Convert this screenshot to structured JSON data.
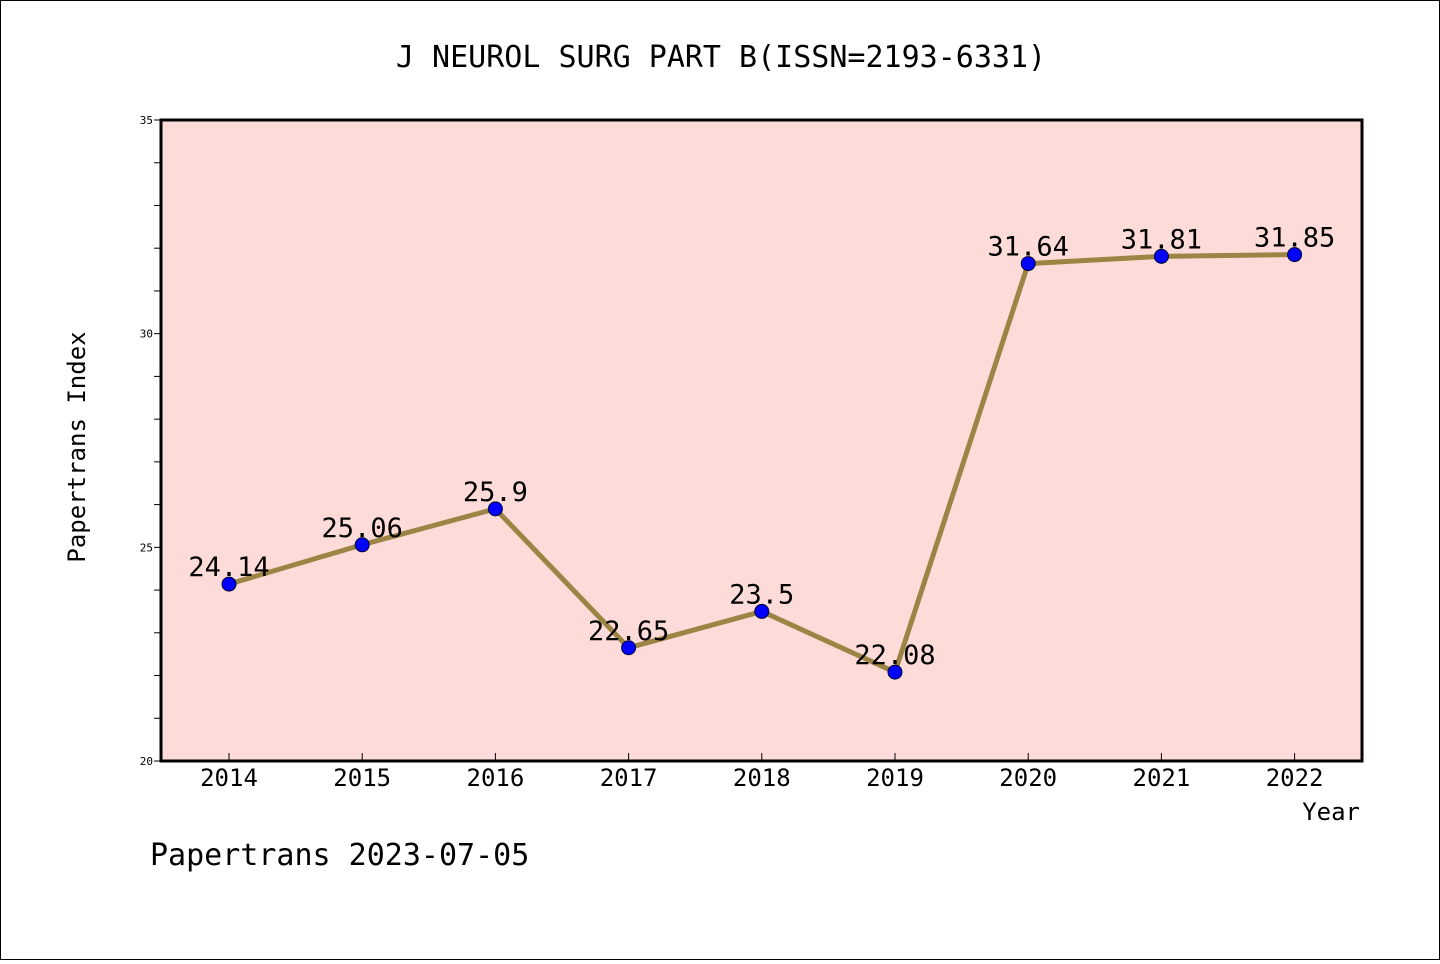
{
  "chart_data": {
    "type": "line",
    "title": "J NEUROL SURG PART B(ISSN=2193-6331)",
    "xlabel": "Year",
    "ylabel": "Papertrans Index",
    "categories": [
      "2014",
      "2015",
      "2016",
      "2017",
      "2018",
      "2019",
      "2020",
      "2021",
      "2022"
    ],
    "series": [
      {
        "values": [
          24.14,
          25.06,
          25.9,
          22.65,
          23.5,
          22.08,
          31.64,
          31.81,
          31.85
        ],
        "labels": [
          "24.14",
          "25.06",
          "25.9",
          "22.65",
          "23.5",
          "22.08",
          "31.64",
          "31.81",
          "31.85"
        ]
      }
    ],
    "ylim": [
      20,
      35
    ],
    "yticks": [
      "20",
      "25",
      "30",
      "35"
    ],
    "grid": false,
    "colors": {
      "plot_background": "#fddbd8",
      "line": "#9b8444",
      "marker": "#0000ff"
    }
  },
  "footer": {
    "text": "Papertrans 2023-07-05"
  }
}
